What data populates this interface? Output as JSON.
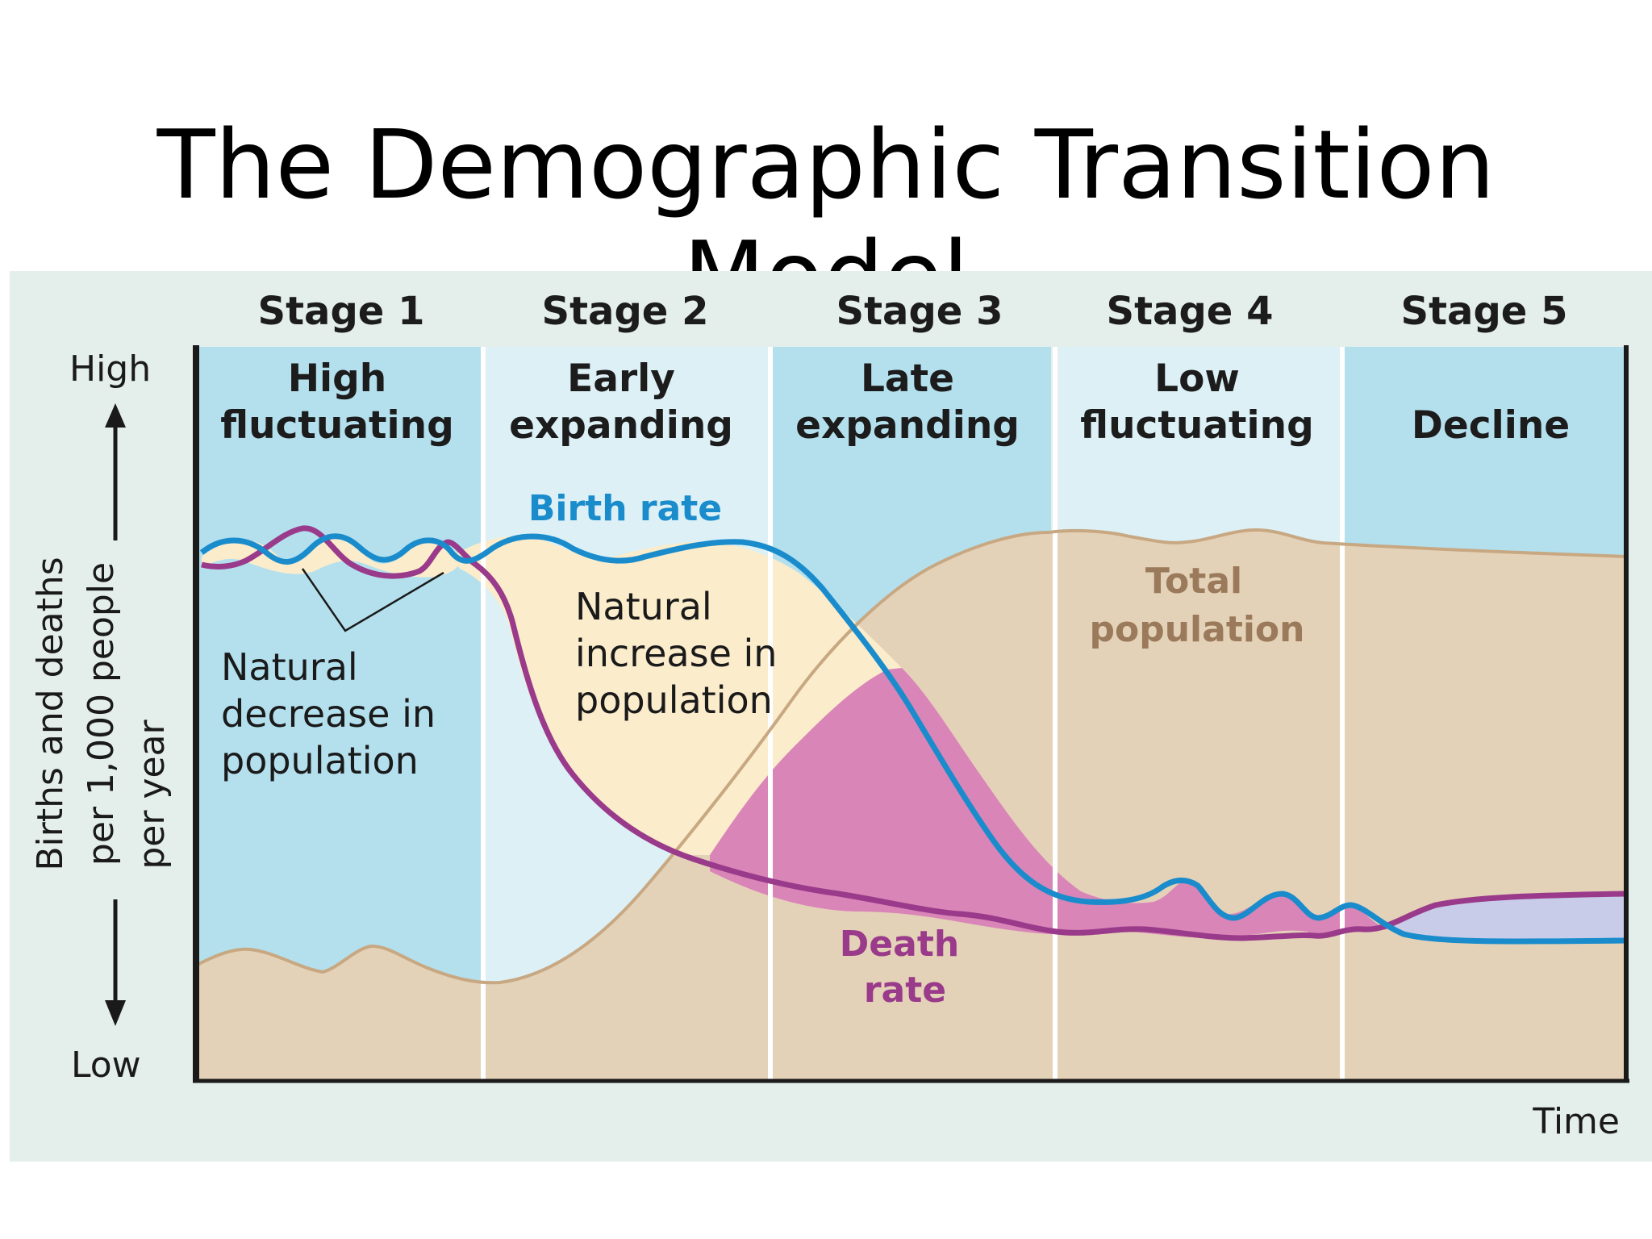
{
  "title": "The Demographic Transition Model",
  "stages": [
    {
      "label": "Stage 1",
      "name_lines": [
        "High",
        "fluctuating"
      ]
    },
    {
      "label": "Stage 2",
      "name_lines": [
        "Early",
        "expanding"
      ]
    },
    {
      "label": "Stage 3",
      "name_lines": [
        "Late",
        "expanding"
      ]
    },
    {
      "label": "Stage 4",
      "name_lines": [
        "Low",
        "fluctuating"
      ]
    },
    {
      "label": "Stage 5",
      "name_lines": [
        "",
        "Decline"
      ]
    }
  ],
  "axes": {
    "y_label_lines": [
      "Births and deaths",
      "per 1,000 people",
      "per year"
    ],
    "y_high": "High",
    "y_low": "Low",
    "x_label": "Time"
  },
  "curves": {
    "birth_rate_label": "Birth rate",
    "death_rate_label_lines": [
      "Death",
      "rate"
    ],
    "total_population_label_lines": [
      "Total",
      "population"
    ]
  },
  "annotations": {
    "natural_decrease_lines": [
      "Natural",
      "decrease in",
      "population"
    ],
    "natural_increase_lines": [
      "Natural",
      "increase in",
      "population"
    ]
  },
  "colors": {
    "panel_background": "#e4eeea",
    "stage_dark_blue": "#b4e0ee",
    "stage_light_blue": "#dcf0f6",
    "total_population_fill": "#e4d2b8",
    "total_population_line": "#c8a882",
    "birth_rate_line": "#1a8ccc",
    "death_rate_line": "#9a3a8a",
    "natural_increase_fill": "#fbeccb",
    "stage3_increase_fill": "#d985b8",
    "stage5_gap_fill": "#c8cce8",
    "total_population_text": "#9a7a5a",
    "death_rate_text": "#9a3a8a",
    "birth_rate_text": "#1a8ccc"
  }
}
